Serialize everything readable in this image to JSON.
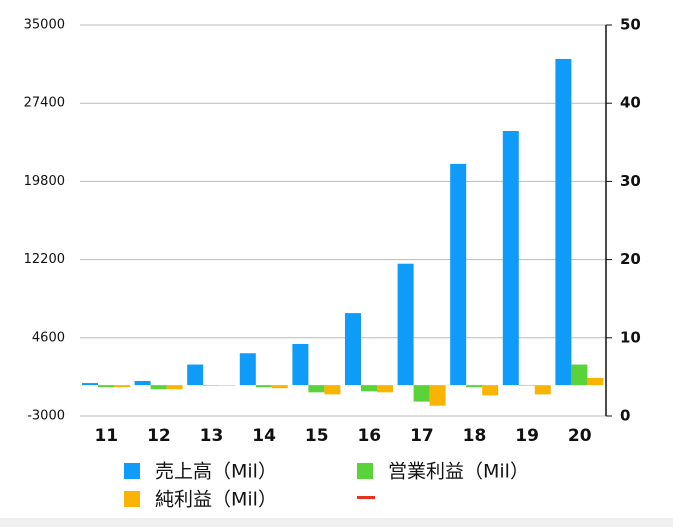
{
  "chart_data": {
    "type": "bar",
    "categories": [
      "11",
      "12",
      "13",
      "14",
      "15",
      "16",
      "17",
      "18",
      "19",
      "20"
    ],
    "series": [
      {
        "name": "売上高（Mil）",
        "color": "#0f9bf8",
        "values": [
          200,
          400,
          2000,
          3100,
          4000,
          7000,
          11800,
          21500,
          24700,
          31700
        ]
      },
      {
        "name": "営業利益（Mil）",
        "color": "#5ad33b",
        "values": [
          -200,
          -400,
          0,
          -200,
          -700,
          -600,
          -1600,
          -200,
          0,
          2000
        ]
      },
      {
        "name": "純利益（Mil）",
        "color": "#f8b400",
        "values": [
          -200,
          -400,
          0,
          -300,
          -900,
          -700,
          -2000,
          -1000,
          -900,
          700
        ]
      },
      {
        "color": "#e8321e",
        "axis": "y2",
        "values": [
          null,
          null,
          null,
          null,
          null,
          null,
          null,
          null,
          null,
          null
        ]
      }
    ],
    "ylim": [
      -3000,
      35000
    ],
    "yticks": [
      -3000,
      4600,
      12200,
      19800,
      27400,
      35000
    ],
    "y2lim": [
      0,
      50
    ],
    "y2ticks": [
      0,
      10,
      20,
      30,
      40,
      50
    ],
    "grid": true
  }
}
